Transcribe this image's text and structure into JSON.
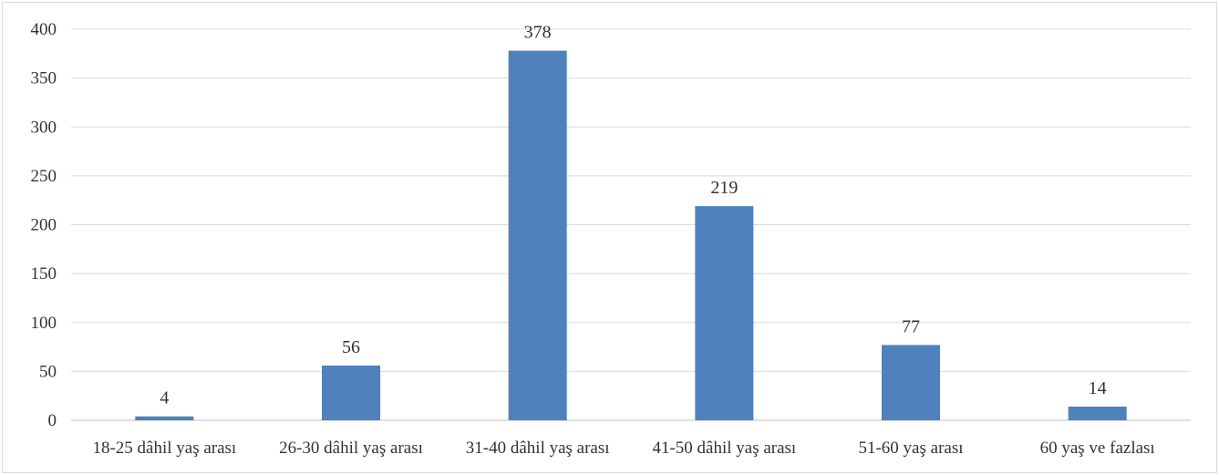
{
  "chart_data": {
    "type": "bar",
    "categories": [
      "18-25 dâhil yaş arası",
      "26-30 dâhil yaş arası",
      "31-40 dâhil yaş arası",
      "41-50 dâhil yaş arası",
      "51-60 yaş arası",
      "60 yaş ve fazlası"
    ],
    "values": [
      4,
      56,
      378,
      219,
      77,
      14
    ],
    "data_labels": [
      "4",
      "56",
      "378",
      "219",
      "77",
      "14"
    ],
    "yticks": [
      "0",
      "50",
      "100",
      "150",
      "200",
      "250",
      "300",
      "350",
      "400"
    ],
    "ylim": [
      0,
      400
    ],
    "grid": true,
    "legend": "none",
    "bar_color": "#4f81bd",
    "grid_color": "#d9d9d9"
  }
}
